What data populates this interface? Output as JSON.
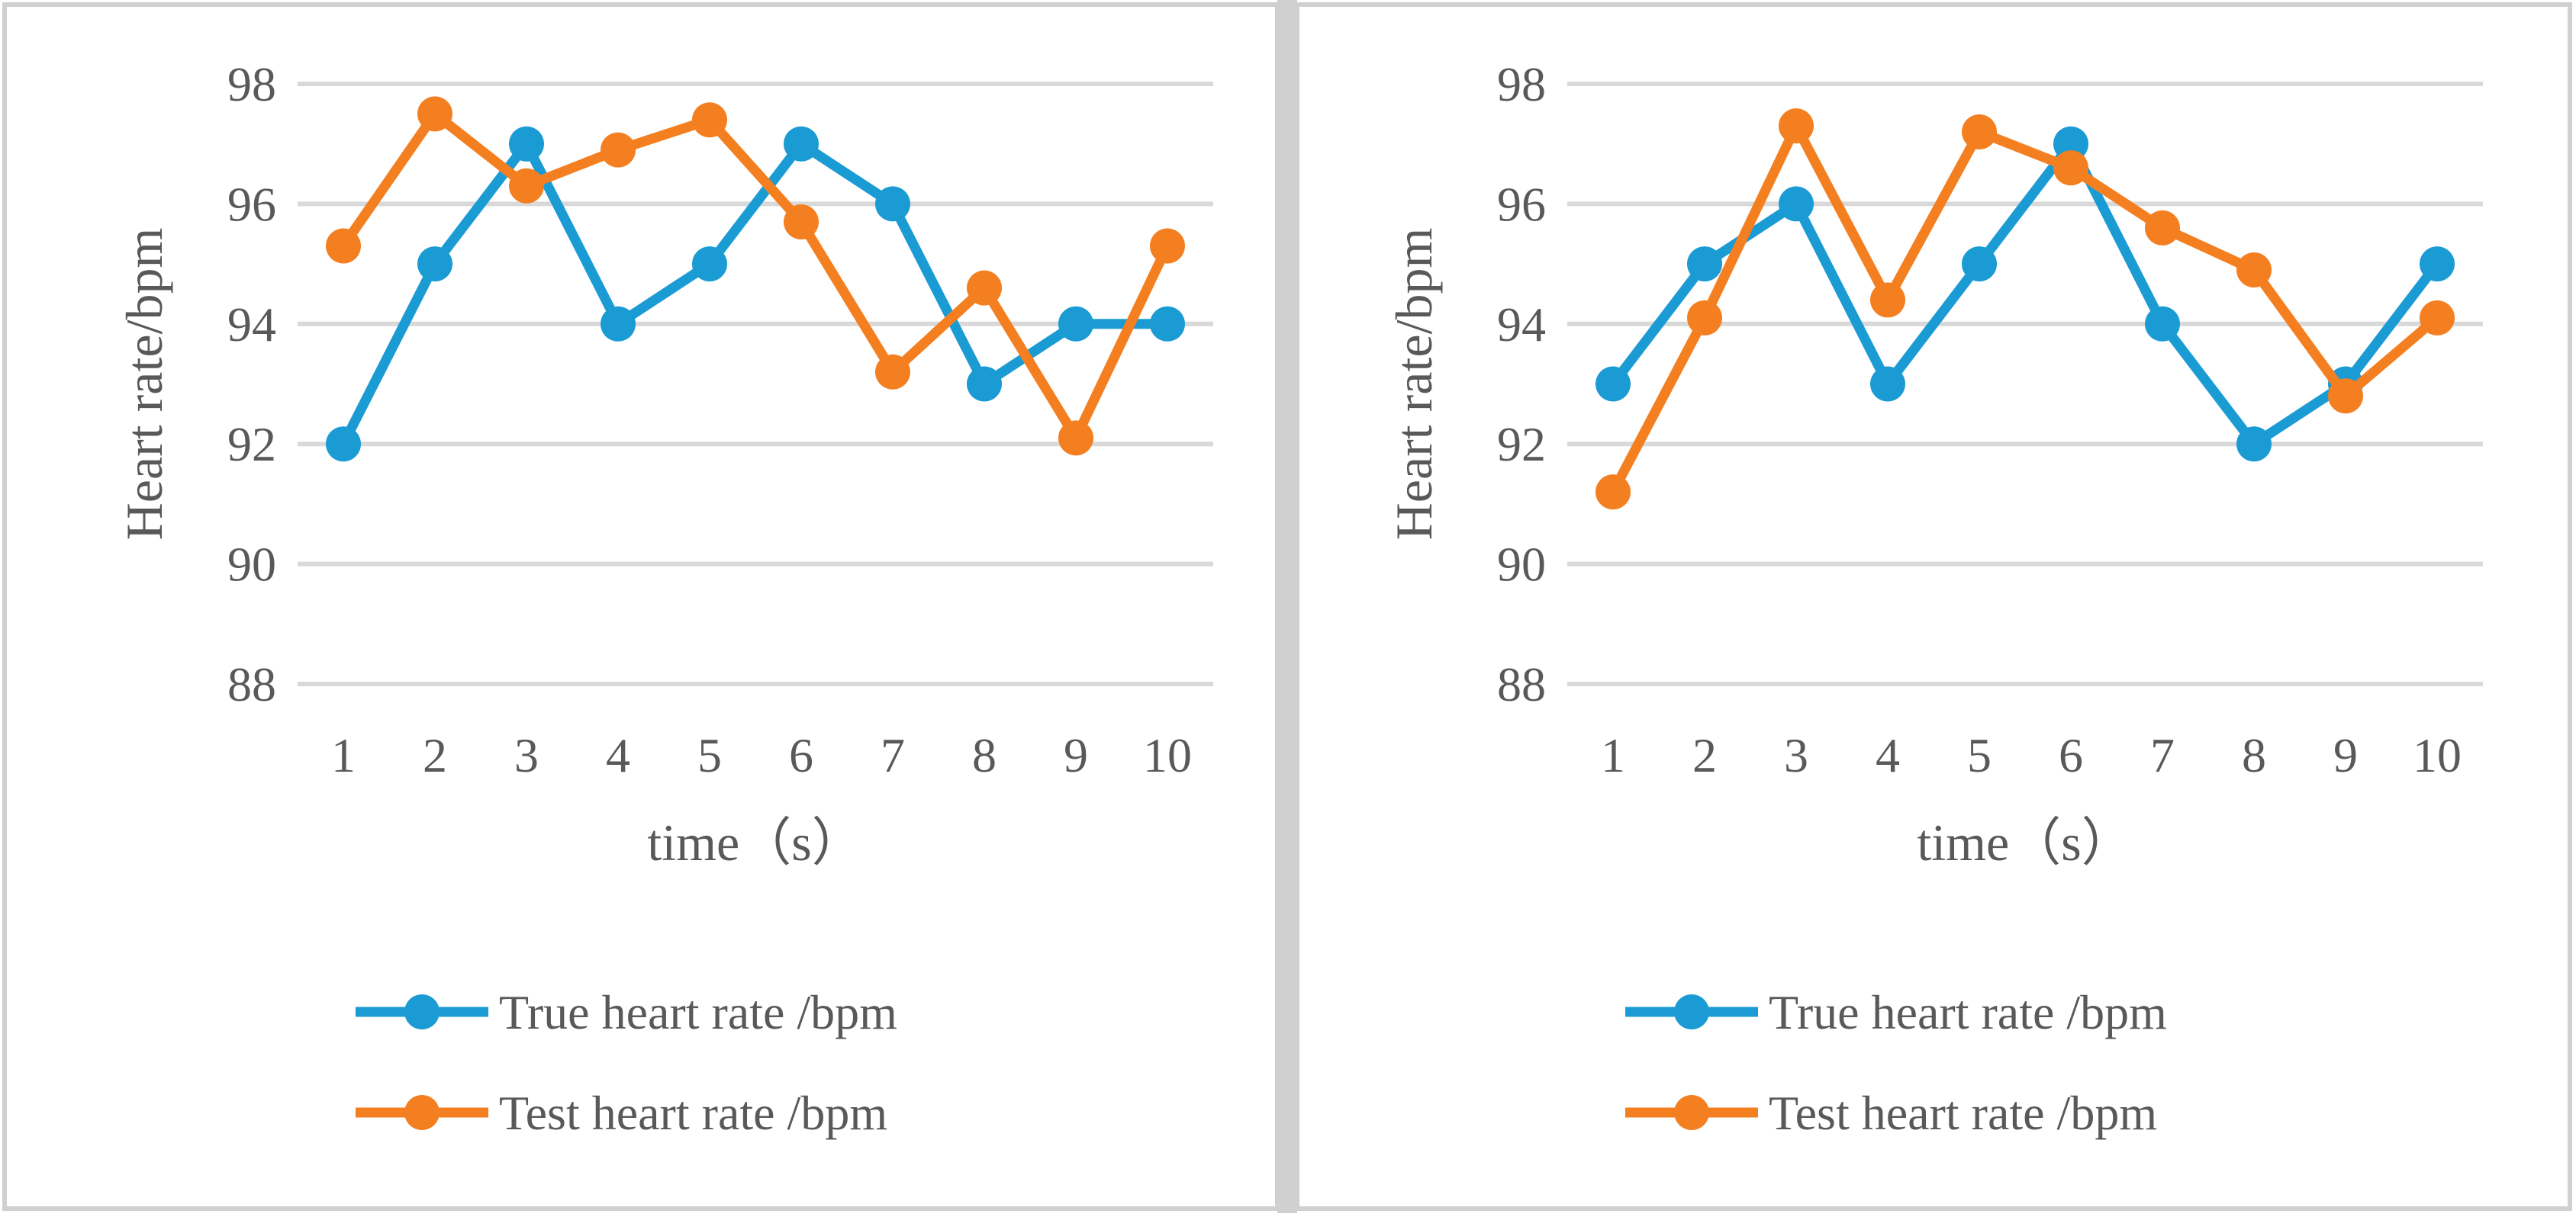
{
  "colors": {
    "true_series": "#1b9bd4",
    "test_series": "#f47f21",
    "grid": "#d9d9d9",
    "text": "#595959",
    "frame": "#d0d0d0",
    "background": "#ffffff"
  },
  "chart_data": [
    {
      "type": "line",
      "categories": [
        "1",
        "2",
        "3",
        "4",
        "5",
        "6",
        "7",
        "8",
        "9",
        "10"
      ],
      "series": [
        {
          "name": "True heart rate /bpm",
          "color": "#1b9bd4",
          "values": [
            92,
            95,
            97,
            94,
            95,
            97,
            96,
            93,
            94,
            94
          ]
        },
        {
          "name": "Test heart rate /bpm",
          "color": "#f47f21",
          "values": [
            95.3,
            97.5,
            96.3,
            96.9,
            97.4,
            95.7,
            93.2,
            94.6,
            92.1,
            95.3
          ]
        }
      ],
      "title": "",
      "xlabel": "time（s）",
      "ylabel": "Heart rate/bpm",
      "ylim": [
        88,
        98
      ],
      "yticks": [
        "88",
        "90",
        "92",
        "94",
        "96",
        "98"
      ],
      "grid": true,
      "legend_position": "bottom"
    },
    {
      "type": "line",
      "categories": [
        "1",
        "2",
        "3",
        "4",
        "5",
        "6",
        "7",
        "8",
        "9",
        "10"
      ],
      "series": [
        {
          "name": "True heart rate /bpm",
          "color": "#1b9bd4",
          "values": [
            93,
            95,
            96,
            93,
            95,
            97,
            94,
            92,
            93,
            95
          ]
        },
        {
          "name": "Test heart rate /bpm",
          "color": "#f47f21",
          "values": [
            91.2,
            94.1,
            97.3,
            94.4,
            97.2,
            96.6,
            95.6,
            94.9,
            92.8,
            94.1
          ]
        }
      ],
      "title": "",
      "xlabel": "time（s）",
      "ylabel": "Heart rate/bpm",
      "ylim": [
        88,
        98
      ],
      "yticks": [
        "88",
        "90",
        "92",
        "94",
        "96",
        "98"
      ],
      "grid": true,
      "legend_position": "bottom"
    }
  ]
}
